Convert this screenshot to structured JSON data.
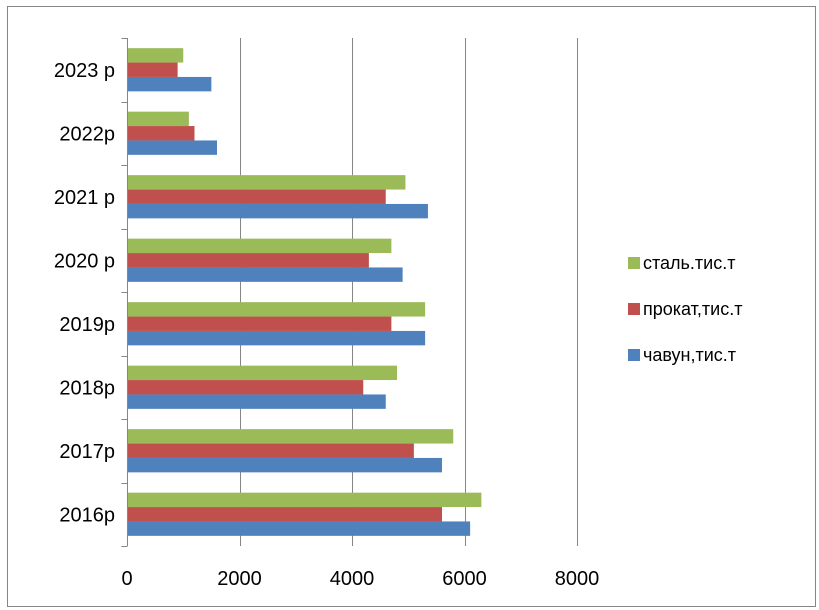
{
  "chart_data": {
    "type": "bar",
    "orientation": "horizontal",
    "categories": [
      "2016р",
      "2017р",
      "2018р",
      "2019р",
      "2020 р",
      "2021 р",
      "2022р",
      "2023 р"
    ],
    "series": [
      {
        "name": "чавун,тис.т",
        "color": "#4F81BD",
        "values": [
          6100,
          5600,
          4600,
          5300,
          4900,
          5350,
          1600,
          1500
        ]
      },
      {
        "name": "прокат,тис.т",
        "color": "#C0504D",
        "values": [
          5600,
          5100,
          4200,
          4700,
          4300,
          4600,
          1200,
          900
        ]
      },
      {
        "name": "сталь.тис.т",
        "color": "#9BBB59",
        "values": [
          6300,
          5800,
          4800,
          5300,
          4700,
          4950,
          1100,
          1000
        ]
      }
    ],
    "xticks": [
      "0",
      "2000",
      "4000",
      "6000",
      "8000"
    ],
    "xlim": [
      0,
      8000
    ],
    "grid": "vertical",
    "legend_position": "right",
    "legend_order": [
      "сталь.тис.т",
      "прокат,тис.т",
      "чавун,тис.т"
    ]
  }
}
